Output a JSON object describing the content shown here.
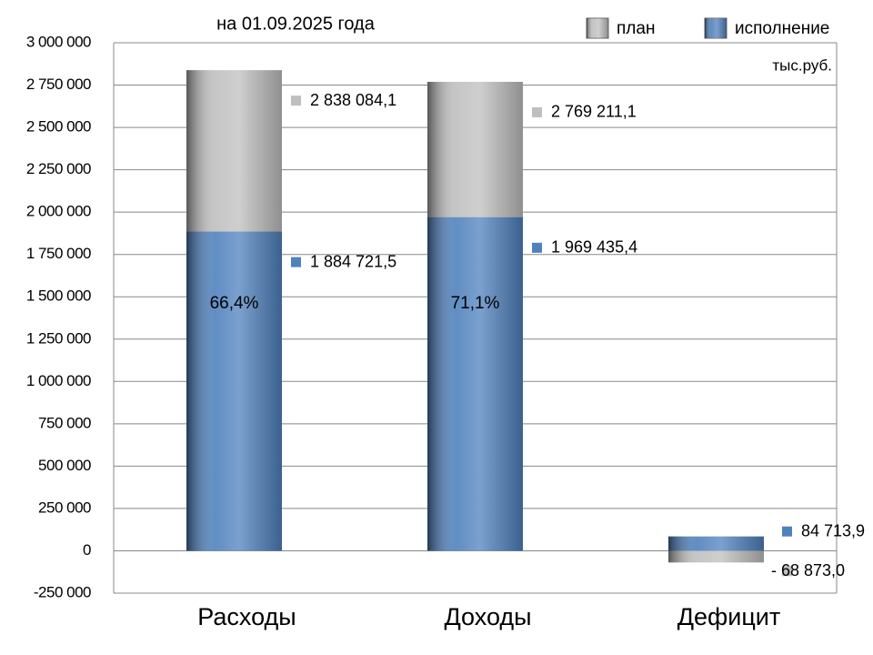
{
  "chart_data": {
    "type": "bar",
    "title": "на 01.09.2025 года",
    "unit_label": "тыс.руб.",
    "categories": [
      "Расходы",
      "Доходы",
      "Дефицит"
    ],
    "series": [
      {
        "name": "план",
        "color": "#bfbfbf",
        "values": [
          2838084.1,
          2769211.1,
          -68873.0
        ],
        "value_labels": [
          "2 838 084,1",
          "2 769 211,1",
          "- 68 873,0"
        ]
      },
      {
        "name": "исполнение",
        "color": "#4f81bd",
        "values": [
          1884721.5,
          1969435.4,
          84713.9
        ],
        "value_labels": [
          "1 884 721,5",
          "1 969 435,4",
          "84 713,9"
        ]
      }
    ],
    "bar_labels": [
      "66,4%",
      "71,1%"
    ],
    "ylim": [
      -250000,
      3000000
    ],
    "yticks": [
      {
        "value": -250000,
        "label": "-250 000"
      },
      0,
      {
        "value": 250000,
        "label": "250 000"
      },
      {
        "value": 500000,
        "label": "500 000"
      },
      {
        "value": 750000,
        "label": "750 000"
      },
      {
        "value": 1000000,
        "label": "1 000 000"
      },
      {
        "value": 1250000,
        "label": "1 250 000"
      },
      {
        "value": 1500000,
        "label": "1 500 000"
      },
      {
        "value": 1750000,
        "label": "1 750 000"
      },
      {
        "value": 2000000,
        "label": "2 000 000"
      },
      {
        "value": 2250000,
        "label": "2 250 000"
      },
      {
        "value": 2500000,
        "label": "2 500 000"
      },
      {
        "value": 2750000,
        "label": "2 750 000"
      },
      {
        "value": 3000000,
        "label": "3 000 000"
      }
    ],
    "grid": true,
    "legend": "top-right",
    "overlap": true
  }
}
